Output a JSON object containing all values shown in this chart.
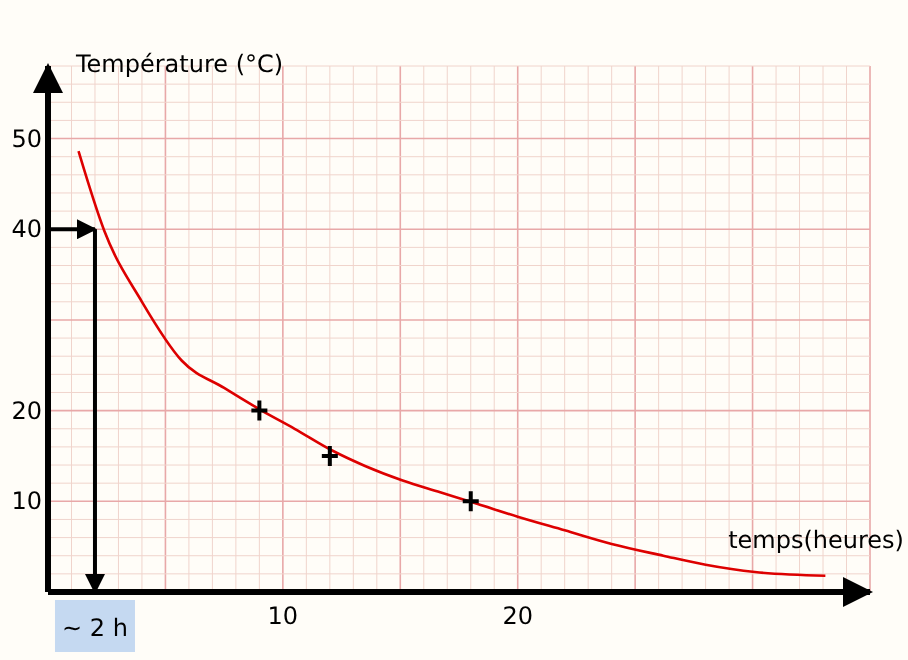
{
  "chart_data": {
    "type": "line",
    "xlabel": "temps(heures)",
    "ylabel": "Température (°C)",
    "xlim": [
      0,
      35
    ],
    "ylim": [
      0,
      58
    ],
    "xticks": [
      10,
      20
    ],
    "yticks": [
      10,
      20,
      40,
      50
    ],
    "grid": true,
    "series": [
      {
        "color": "#dd0000",
        "marker": "none",
        "x": [
          1.3,
          2.4,
          4,
          5.7,
          7.5,
          9.1,
          10.5,
          12.1,
          13.5,
          15.1,
          16.7,
          18.3,
          20,
          22,
          24,
          26.2,
          28,
          30.1,
          33.1
        ],
        "values": [
          48.6,
          39.8,
          32,
          25.5,
          22.5,
          20,
          18,
          15.6,
          13.9,
          12.3,
          11,
          9.7,
          8.3,
          6.8,
          5.3,
          4,
          3,
          2.2,
          1.8
        ]
      },
      {
        "type": "scatter",
        "color": "#000000",
        "marker": "cross",
        "x": [
          9,
          12,
          18
        ],
        "values": [
          20,
          15,
          10
        ]
      }
    ],
    "annotations": [
      {
        "text": "~ 2 h",
        "x": 2,
        "y": 40
      }
    ]
  }
}
